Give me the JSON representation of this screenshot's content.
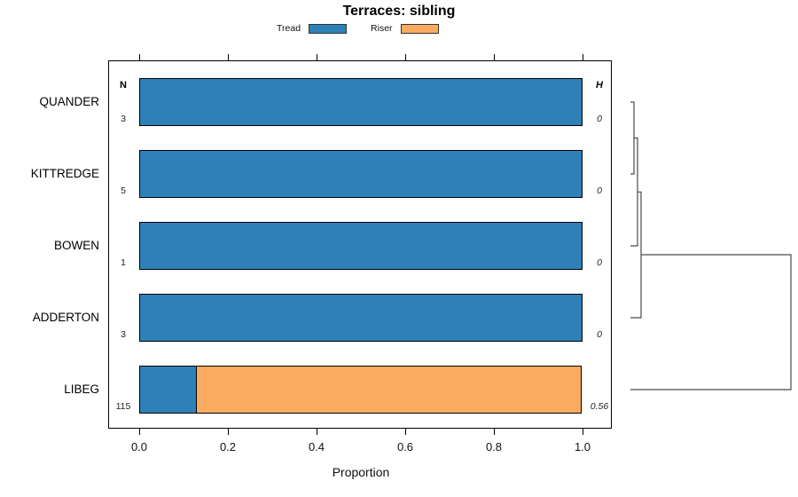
{
  "title": "Terraces: sibling",
  "columns": {
    "n_header": "N",
    "h_header": "H"
  },
  "chart_data": {
    "type": "bar",
    "orientation": "horizontal",
    "stacked": true,
    "title": "Terraces: sibling",
    "xlabel": "Proportion",
    "xlim": [
      0,
      1
    ],
    "x_ticks": [
      "0.0",
      "0.2",
      "0.4",
      "0.6",
      "0.8",
      "1.0"
    ],
    "grid": false,
    "legend_position": "top",
    "categories": [
      "QUANDER",
      "KITTREDGE",
      "BOWEN",
      "ADDERTON",
      "LIBEG"
    ],
    "n_values": [
      "3",
      "5",
      "1",
      "3",
      "115"
    ],
    "h_values": [
      "0",
      "0",
      "0",
      "0",
      "0.56"
    ],
    "series": [
      {
        "name": "Tread",
        "color": "#2E81B8",
        "values": [
          1.0,
          1.0,
          1.0,
          1.0,
          0.13
        ]
      },
      {
        "name": "Riser",
        "color": "#FBAB60",
        "values": [
          0,
          0,
          0,
          0,
          0.87
        ]
      }
    ],
    "dendrogram": {
      "side": "right",
      "merge_order": [
        [
          "QUANDER",
          "KITTREDGE"
        ],
        [
          "QUANDER+KITTREDGE",
          "BOWEN"
        ],
        [
          "QUANDER+KITTREDGE+BOWEN",
          "ADDERTON"
        ],
        [
          "QUANDER+KITTREDGE+BOWEN+ADDERTON",
          "LIBEG"
        ]
      ]
    }
  },
  "colors": {
    "tread": "#2E81B8",
    "riser": "#FBAB60",
    "bar_border": "#000000",
    "axis": "#000000",
    "dendrogram_line": "#4a4a4a",
    "background": "#ffffff"
  }
}
